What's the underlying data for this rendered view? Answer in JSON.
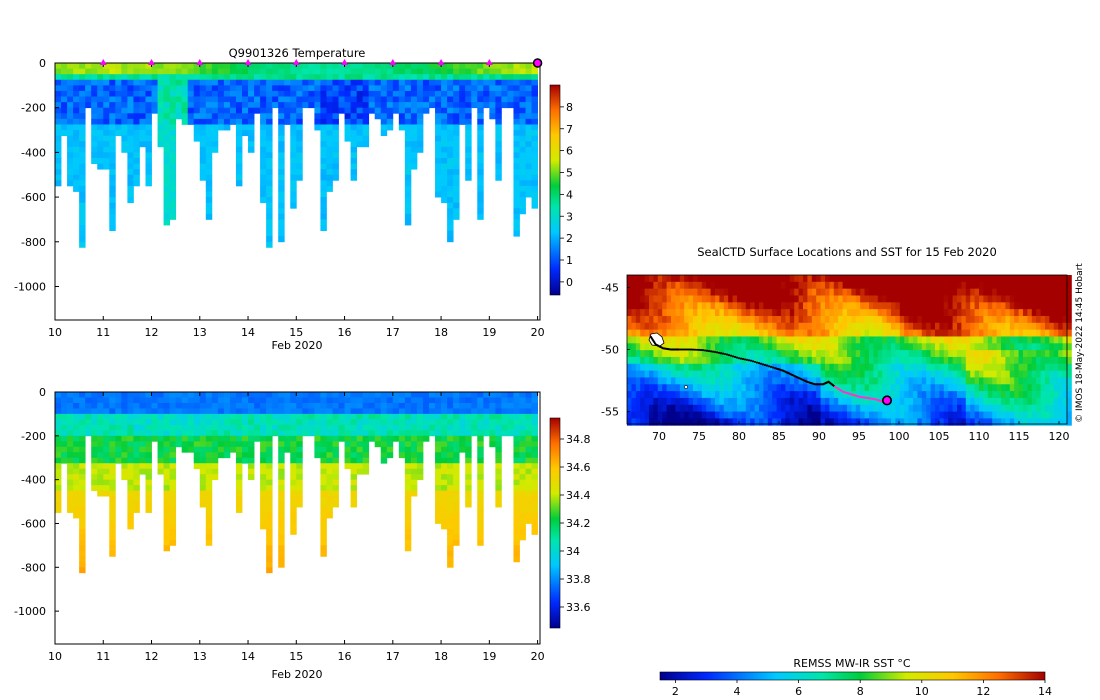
{
  "chart_data": [
    {
      "type": "heatmap",
      "name": "temperature-section",
      "title": "Q9901326  Temperature",
      "xlabel": "Feb 2020",
      "ylabel": "",
      "xlim": [
        10,
        20.05
      ],
      "ylim": [
        -1150,
        0
      ],
      "x_ticks": [
        10,
        11,
        12,
        13,
        14,
        15,
        16,
        17,
        18,
        19,
        20
      ],
      "y_ticks": [
        0,
        -200,
        -400,
        -600,
        -800,
        -1000
      ],
      "profile_day_markers": [
        11,
        12,
        13,
        14,
        15,
        16,
        17,
        18,
        19
      ],
      "last_position_marker_x": 20,
      "colorbar": {
        "min": -0.6,
        "max": 9,
        "ticks": [
          0,
          1,
          2,
          3,
          4,
          5,
          6,
          7,
          8
        ],
        "unit": "°C"
      }
    },
    {
      "type": "heatmap",
      "name": "salinity-section",
      "title": "",
      "xlabel": "Feb 2020",
      "ylabel": "",
      "xlim": [
        10,
        20.05
      ],
      "ylim": [
        -1150,
        0
      ],
      "x_ticks": [
        10,
        11,
        12,
        13,
        14,
        15,
        16,
        17,
        18,
        19,
        20
      ],
      "y_ticks": [
        0,
        -200,
        -400,
        -600,
        -800,
        -1000
      ],
      "colorbar": {
        "min": 33.45,
        "max": 34.95,
        "ticks": [
          33.6,
          33.8,
          34,
          34.2,
          34.4,
          34.6,
          34.8
        ]
      }
    },
    {
      "type": "heatmap",
      "name": "sst-map",
      "title": "SealCTD Surface Locations and SST for 15 Feb 2020",
      "xlabel": "",
      "ylabel": "",
      "xlim": [
        66,
        121
      ],
      "ylim": [
        -56,
        -44
      ],
      "x_ticks": [
        70,
        75,
        80,
        85,
        90,
        95,
        100,
        105,
        110,
        115,
        120
      ],
      "y_ticks": [
        -45,
        -50,
        -55
      ],
      "colorbar": {
        "title": "REMSS MW-IR SST °C",
        "min": 1.5,
        "max": 14,
        "ticks": [
          2,
          4,
          6,
          8,
          10,
          12,
          14
        ]
      },
      "track": {
        "lon": [
          69.0,
          69.6,
          70.5,
          71.5,
          72.5,
          74,
          75.5,
          77,
          78.5,
          80,
          81.5,
          83,
          84.5,
          85.5,
          86.5,
          87.5,
          88.5,
          89.5,
          90.5,
          91.2,
          92,
          93,
          94,
          95,
          96,
          97,
          98,
          98.5
        ],
        "lat": [
          -49.0,
          -49.6,
          -49.9,
          -50.0,
          -50.0,
          -50.0,
          -50.05,
          -50.2,
          -50.4,
          -50.7,
          -50.9,
          -51.2,
          -51.5,
          -51.7,
          -52.0,
          -52.3,
          -52.6,
          -52.8,
          -52.8,
          -52.6,
          -53.0,
          -53.4,
          -53.6,
          -53.8,
          -53.9,
          -54.0,
          -54.2,
          -54.1
        ],
        "recent_from_lon": 92
      },
      "current_position": {
        "lon": 98.5,
        "lat": -54.1
      }
    }
  ],
  "credit": "© IMOS 18-May-2022 14:45 Hobart",
  "colors": {
    "profile_marker": "#ff00ff",
    "track": "#000000",
    "recent_track": "#ff33cc"
  }
}
